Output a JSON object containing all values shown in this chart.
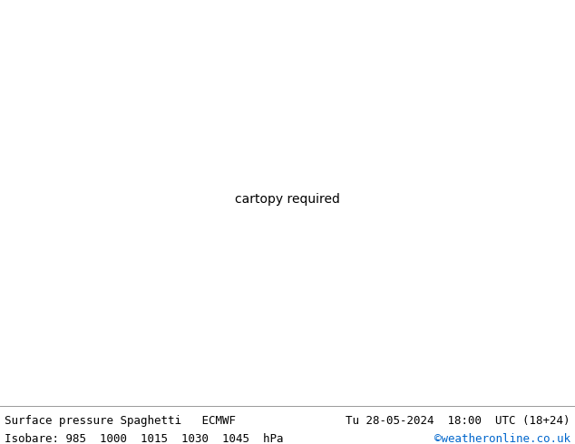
{
  "title_left": "Surface pressure Spaghetti   ECMWF",
  "title_right": "Tu 28-05-2024  18:00  UTC (18+24)",
  "subtitle_left": "Isobare: 985  1000  1015  1030  1045  hPa",
  "subtitle_right": "©weatheronline.co.uk",
  "subtitle_right_color": "#0066cc",
  "bg_color": "#ffffff",
  "land_color": "#c8e6a0",
  "sea_color": "#e8e8e8",
  "border_color": "#aaaaaa",
  "coast_color": "#555555",
  "text_color": "#000000",
  "title_fontsize": 9,
  "subtitle_fontsize": 9,
  "isobar_color_map": {
    "985": [
      "#ff00ff",
      "#cc00cc",
      "#ee00ee",
      "#aa00aa",
      "#ff33ff",
      "#dd00dd",
      "#bb00bb",
      "#ee11ee",
      "#cc22cc",
      "#ff00cc"
    ],
    "1000": [
      "#ff0000",
      "#cc0000",
      "#ee0000",
      "#dd0000",
      "#ff3300",
      "#cc1100",
      "#ee1100",
      "#dd2200",
      "#ff1111",
      "#cc2200"
    ],
    "1015": [
      "#00bb00",
      "#009900",
      "#00aa00",
      "#00cc00",
      "#118800",
      "#22aa00",
      "#009911",
      "#00bb11",
      "#33aa00",
      "#00aa22"
    ],
    "1030": [
      "#0000ff",
      "#0000cc",
      "#0000ee",
      "#0000dd",
      "#1100ff",
      "#2200cc",
      "#0011ee",
      "#0022dd",
      "#0033ff",
      "#0011cc"
    ],
    "1045": [
      "#ff8800",
      "#ffaa00",
      "#ff9900",
      "#ff7700",
      "#ee8800",
      "#ffbb00",
      "#ff6600",
      "#ee9900",
      "#ffaa11",
      "#ee7700"
    ]
  },
  "extra_colors": [
    "#00cccc",
    "#cc6600",
    "#9900cc",
    "#006600",
    "#cc0066",
    "#6600cc",
    "#00cc66",
    "#cc6666",
    "#6666cc",
    "#66cc66"
  ],
  "figsize": [
    6.34,
    4.9
  ],
  "dpi": 100,
  "map_extent": [
    -30,
    40,
    25,
    72
  ],
  "label_fontsize": 5.5
}
